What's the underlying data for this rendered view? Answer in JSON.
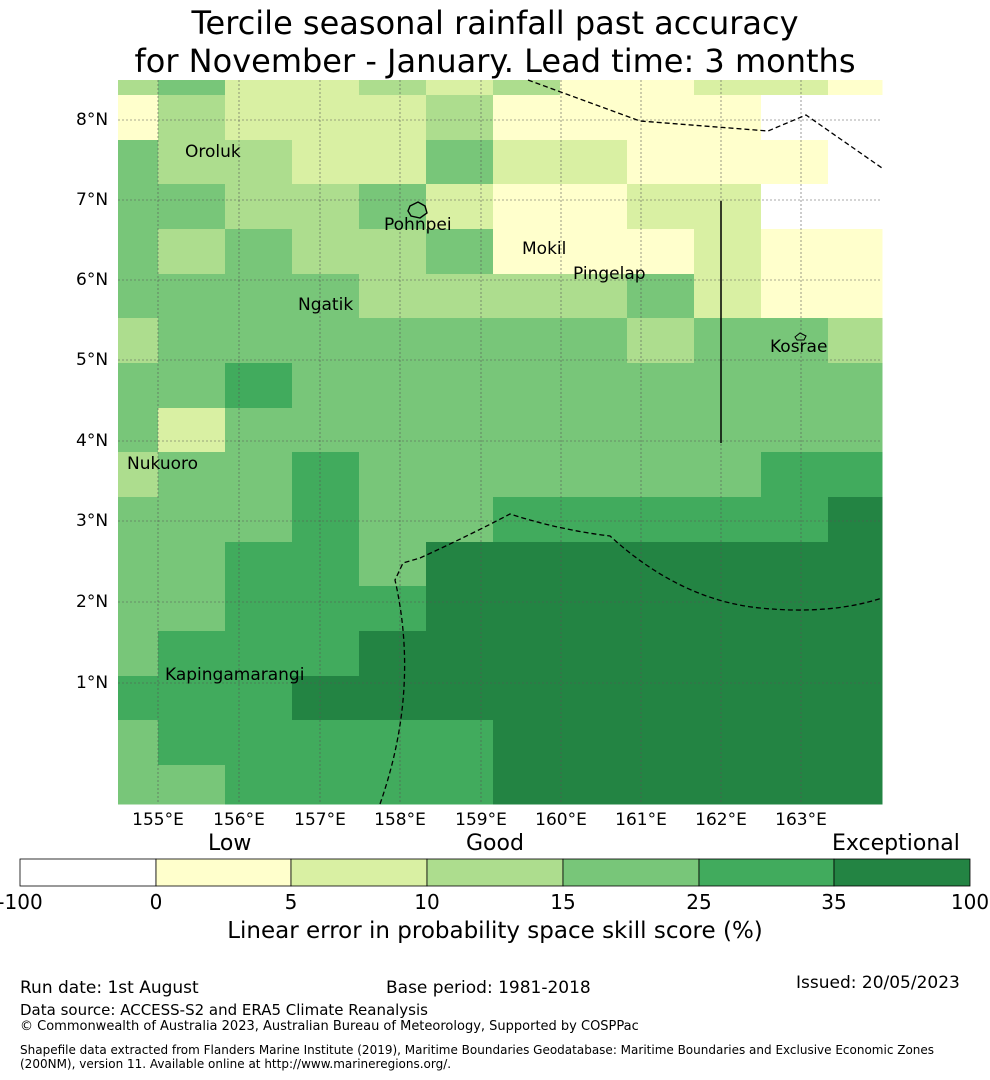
{
  "title": {
    "line1": "Tercile seasonal rainfall past accuracy",
    "line2": "for November - January. Lead time: 3 months"
  },
  "map": {
    "lon_ticks": [
      "155°E",
      "156°E",
      "157°E",
      "158°E",
      "159°E",
      "160°E",
      "161°E",
      "162°E",
      "163°E"
    ],
    "lat_ticks": [
      "8°N",
      "7°N",
      "6°N",
      "5°N",
      "4°N",
      "3°N",
      "2°N",
      "1°N"
    ],
    "places": [
      "Oroluk",
      "Pohnpei",
      "Mokil",
      "Pingelap",
      "Ngatik",
      "Kosrae",
      "Nukuoro",
      "Kapingamarangi"
    ],
    "colors": {
      "none": "#ffffff",
      "low": "#ffffcc",
      "c5_10": "#d9f0a3",
      "c10_15": "#addd8e",
      "c15_25": "#78c679",
      "c25_35": "#41ab5d",
      "c35_100": "#238443"
    }
  },
  "colorbar": {
    "categories": [
      "Low",
      "Good",
      "Exceptional"
    ],
    "ticks": [
      "-100",
      "0",
      "5",
      "10",
      "15",
      "25",
      "35",
      "100"
    ],
    "label": "Linear error in probability space skill score (%)"
  },
  "footer": {
    "run_date": "Run date: 1st August",
    "base_period": "Base period: 1981-2018",
    "issued": "Issued: 20/05/2023",
    "data_source": "Data source: ACCESS-S2 and ERA5 Climate Reanalysis",
    "copyright": "© Commonwealth of Australia 2023, Australian Bureau of Meteorology, Supported by COSPPac",
    "shapefile_line1": "Shapefile data extracted from Flanders Marine Institute (2019), Maritime Boundaries Geodatabase: Maritime Boundaries and Exclusive Economic Zones",
    "shapefile_line2": "(200NM), version 11. Available online at http://www.marineregions.org/."
  }
}
